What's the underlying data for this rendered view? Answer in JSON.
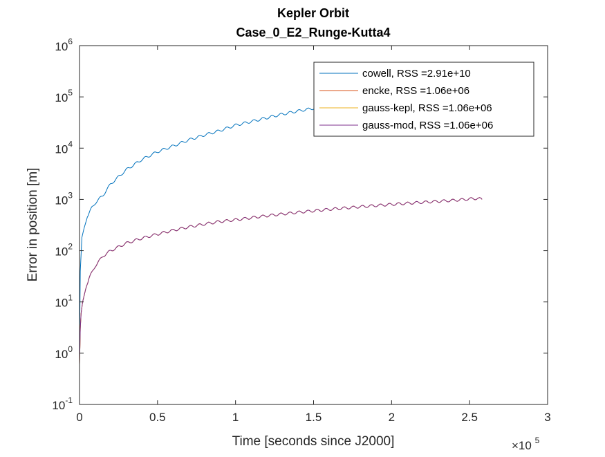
{
  "chart_data": {
    "type": "line",
    "title": "Kepler Orbit",
    "subtitle": "Case_0_E2_Runge-Kutta4",
    "xlabel": "Time [seconds since J2000]",
    "ylabel": "Error in position [m]",
    "x_multiplier_label": "×10",
    "x_multiplier_exponent": "5",
    "xlim": [
      0,
      300000
    ],
    "ylim": [
      0.1,
      1000000
    ],
    "yscale": "log",
    "grid": false,
    "legend_position": "top-right",
    "x_ticks": [
      {
        "value": 0,
        "label": "0"
      },
      {
        "value": 50000,
        "label": "0.5"
      },
      {
        "value": 100000,
        "label": "1"
      },
      {
        "value": 150000,
        "label": "1.5"
      },
      {
        "value": 200000,
        "label": "2"
      },
      {
        "value": 250000,
        "label": "2.5"
      },
      {
        "value": 300000,
        "label": "3"
      }
    ],
    "y_ticks": [
      {
        "value": 0.1,
        "base": "10",
        "exp": "-1"
      },
      {
        "value": 1,
        "base": "10",
        "exp": "0"
      },
      {
        "value": 10,
        "base": "10",
        "exp": "1"
      },
      {
        "value": 100,
        "base": "10",
        "exp": "2"
      },
      {
        "value": 1000,
        "base": "10",
        "exp": "3"
      },
      {
        "value": 10000,
        "base": "10",
        "exp": "4"
      },
      {
        "value": 100000,
        "base": "10",
        "exp": "5"
      },
      {
        "value": 1000000,
        "base": "10",
        "exp": "6"
      }
    ],
    "series": [
      {
        "name": "cowell, RSS =2.91e+10",
        "color": "#0072BD",
        "x": [
          0,
          500,
          1500,
          3000,
          5000,
          8000,
          10000,
          15000,
          20000,
          30000,
          40000,
          50000,
          60000,
          70000,
          80000,
          90000,
          100000,
          110000,
          120000,
          130000,
          140000,
          150000,
          158000
        ],
        "y": [
          1.5,
          40,
          180,
          280,
          450,
          700,
          850,
          1200,
          2000,
          3800,
          6000,
          8500,
          11000,
          14500,
          18000,
          22000,
          28000,
          33000,
          39000,
          46000,
          53000,
          60000,
          65000
        ]
      },
      {
        "name": "encke, RSS =1.06e+06",
        "color": "#D95319",
        "x": [
          0,
          500,
          1000,
          2000,
          4000,
          6000,
          8000,
          10000,
          15000,
          20000,
          30000,
          40000,
          50000,
          60000,
          70000,
          80000,
          90000,
          100000,
          120000,
          140000,
          160000,
          180000,
          200000,
          220000,
          240000,
          255000,
          258000
        ],
        "y": [
          0.6,
          3,
          6,
          10,
          18,
          28,
          38,
          50,
          78,
          100,
          140,
          175,
          210,
          250,
          290,
          330,
          370,
          400,
          480,
          560,
          640,
          720,
          800,
          880,
          960,
          1050,
          1000
        ]
      },
      {
        "name": "gauss-kepl, RSS =1.06e+06",
        "color": "#EDB120",
        "x": [
          0,
          500,
          1000,
          2000,
          4000,
          6000,
          8000,
          10000,
          15000,
          20000,
          30000,
          40000,
          50000,
          60000,
          70000,
          80000,
          90000,
          100000,
          120000,
          140000,
          160000,
          180000,
          200000,
          220000,
          240000,
          255000,
          258000
        ],
        "y": [
          0.6,
          3,
          6,
          10,
          18,
          28,
          38,
          50,
          78,
          100,
          140,
          175,
          210,
          250,
          290,
          330,
          370,
          400,
          480,
          560,
          640,
          720,
          800,
          880,
          960,
          1050,
          1000
        ]
      },
      {
        "name": "gauss-mod, RSS =1.06e+06",
        "color": "#7E2F8E",
        "x": [
          0,
          500,
          1000,
          2000,
          4000,
          6000,
          8000,
          10000,
          15000,
          20000,
          30000,
          40000,
          50000,
          60000,
          70000,
          80000,
          90000,
          100000,
          120000,
          140000,
          160000,
          180000,
          200000,
          220000,
          240000,
          255000,
          258000
        ],
        "y": [
          0.6,
          3,
          6,
          10,
          18,
          28,
          38,
          50,
          78,
          100,
          140,
          175,
          210,
          250,
          290,
          330,
          370,
          400,
          480,
          560,
          640,
          720,
          800,
          880,
          960,
          1050,
          1000
        ]
      }
    ]
  }
}
